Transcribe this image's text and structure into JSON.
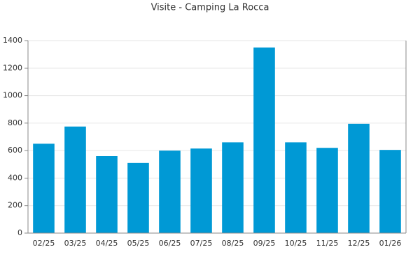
{
  "chart_data": {
    "type": "bar",
    "title": "Visite - Camping La Rocca",
    "categories": [
      "02/25",
      "03/25",
      "04/25",
      "05/25",
      "06/25",
      "07/25",
      "08/25",
      "09/25",
      "10/25",
      "11/25",
      "12/25",
      "01/26"
    ],
    "values": [
      650,
      775,
      560,
      510,
      600,
      615,
      660,
      1350,
      660,
      620,
      795,
      605
    ],
    "color": "#0099d5",
    "ylim": [
      0,
      1400
    ],
    "yticks": [
      0,
      200,
      400,
      600,
      800,
      1000,
      1200,
      1400
    ],
    "grid": true
  }
}
